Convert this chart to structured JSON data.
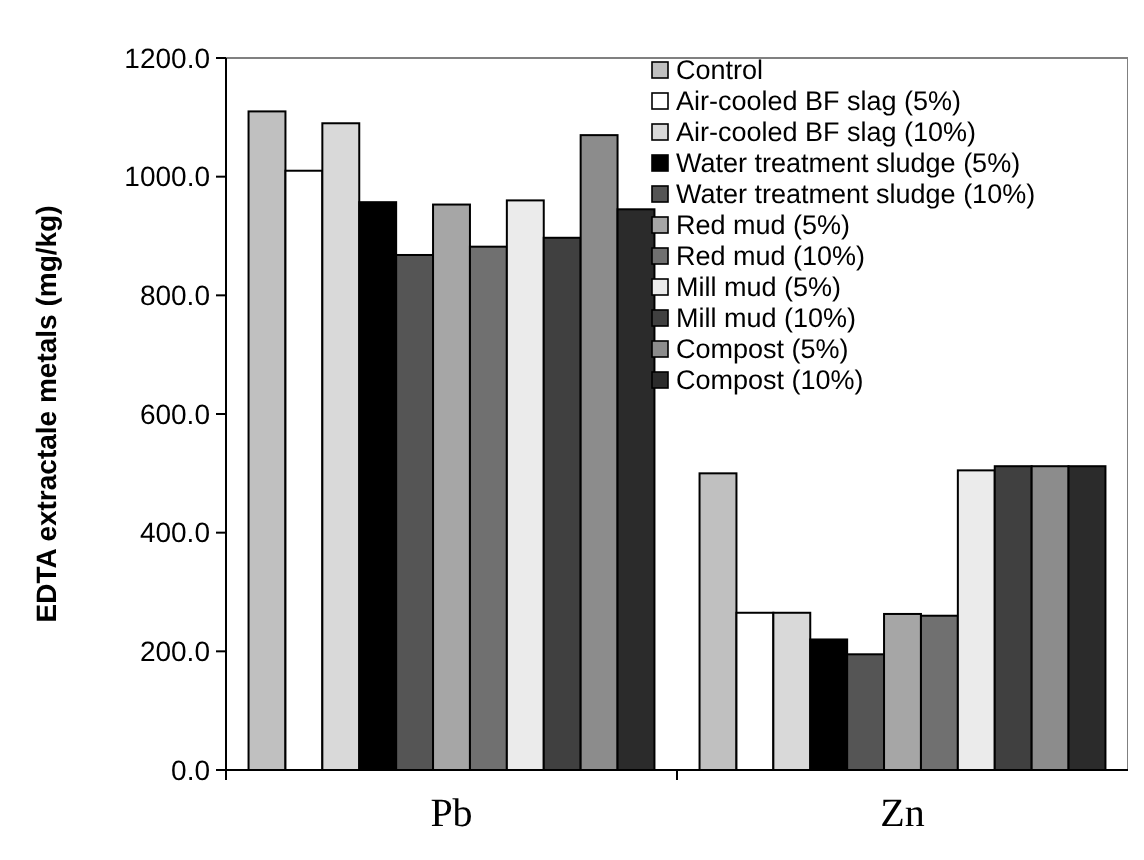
{
  "chart_data": {
    "type": "bar",
    "ylabel": "EDTA extractale metals (mg/kg)",
    "categories": [
      "Pb",
      "Zn"
    ],
    "ylim": [
      0,
      1200
    ],
    "yticks": [
      {
        "value": 0,
        "label": "0.0"
      },
      {
        "value": 200,
        "label": "200.0"
      },
      {
        "value": 400,
        "label": "400.0"
      },
      {
        "value": 600,
        "label": "600.0"
      },
      {
        "value": 800,
        "label": "800.0"
      },
      {
        "value": 1000,
        "label": "1000.0"
      },
      {
        "value": 1200,
        "label": "1200.0"
      }
    ],
    "legend": "top right",
    "grid": false,
    "series": [
      {
        "name": "Control",
        "color": "#c0c0c0",
        "values": [
          1110,
          500
        ]
      },
      {
        "name": "Air-cooled BF slag (5%)",
        "color": "#ffffff",
        "values": [
          1010,
          265
        ]
      },
      {
        "name": "Air-cooled BF slag (10%)",
        "color": "#d9d9d9",
        "values": [
          1090,
          265
        ]
      },
      {
        "name": "Water treatment sludge (5%)",
        "color": "#000000",
        "values": [
          957,
          220
        ]
      },
      {
        "name": "Water treatment sludge (10%)",
        "color": "#555555",
        "values": [
          868,
          195
        ]
      },
      {
        "name": "Red mud (5%)",
        "color": "#a6a6a6",
        "values": [
          953,
          263
        ]
      },
      {
        "name": "Red mud (10%)",
        "color": "#707070",
        "values": [
          882,
          260
        ]
      },
      {
        "name": "Mill mud (5%)",
        "color": "#ebebeb",
        "values": [
          960,
          505
        ]
      },
      {
        "name": "Mill mud (10%)",
        "color": "#404040",
        "values": [
          897,
          512
        ]
      },
      {
        "name": "Compost (5%)",
        "color": "#8c8c8c",
        "values": [
          1070,
          512
        ]
      },
      {
        "name": "Compost (10%)",
        "color": "#2b2b2b",
        "values": [
          945,
          512
        ]
      }
    ]
  }
}
